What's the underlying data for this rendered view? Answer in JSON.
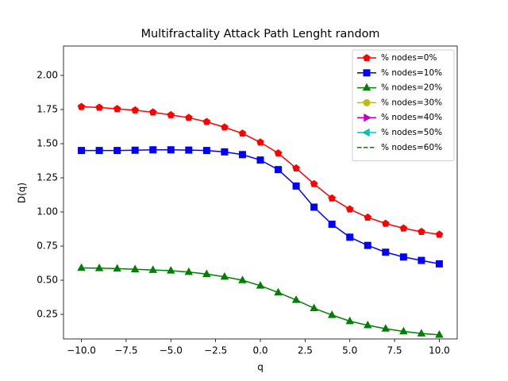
{
  "chart_data": {
    "type": "line",
    "title": "Multifractality Attack Path Lenght random",
    "x_label": "q",
    "y_label": "D(q)",
    "x": [
      -10,
      -9,
      -8,
      -7,
      -6,
      -5,
      -4,
      -3,
      -2,
      -1,
      0,
      1,
      2,
      3,
      4,
      5,
      6,
      7,
      8,
      9,
      10
    ],
    "series": [
      {
        "name": "% nodes=0%",
        "color": "#ff0000",
        "marker": "pentagon",
        "linestyle": "solid",
        "values": [
          1.77,
          1.765,
          1.755,
          1.745,
          1.73,
          1.71,
          1.69,
          1.66,
          1.62,
          1.575,
          1.51,
          1.43,
          1.32,
          1.205,
          1.1,
          1.02,
          0.96,
          0.915,
          0.88,
          0.855,
          0.835
        ]
      },
      {
        "name": "% nodes=10%",
        "color": "#0000ff",
        "marker": "square",
        "linestyle": "solid",
        "values": [
          1.45,
          1.45,
          1.45,
          1.452,
          1.455,
          1.455,
          1.453,
          1.45,
          1.44,
          1.42,
          1.38,
          1.31,
          1.19,
          1.035,
          0.91,
          0.815,
          0.755,
          0.705,
          0.67,
          0.645,
          0.62
        ]
      },
      {
        "name": "% nodes=20%",
        "color": "#008000",
        "marker": "triangle-up",
        "linestyle": "solid",
        "values": [
          0.59,
          0.588,
          0.585,
          0.58,
          0.575,
          0.57,
          0.56,
          0.545,
          0.525,
          0.5,
          0.46,
          0.41,
          0.355,
          0.295,
          0.245,
          0.2,
          0.17,
          0.145,
          0.125,
          0.11,
          0.1
        ]
      },
      {
        "name": "% nodes=30%",
        "color": "#bfbf00",
        "marker": "circle",
        "linestyle": "solid",
        "values": [
          null,
          null,
          null,
          null,
          null,
          null,
          null,
          null,
          null,
          null,
          null,
          null,
          null,
          null,
          null,
          null,
          null,
          null,
          null,
          null,
          null
        ]
      },
      {
        "name": "% nodes=40%",
        "color": "#bf00bf",
        "marker": "triangle-right",
        "linestyle": "solid",
        "values": [
          null,
          null,
          null,
          null,
          null,
          null,
          null,
          null,
          null,
          null,
          null,
          null,
          null,
          null,
          null,
          null,
          null,
          null,
          null,
          null,
          null
        ]
      },
      {
        "name": "% nodes=50%",
        "color": "#00bfbf",
        "marker": "triangle-left",
        "linestyle": "solid",
        "values": [
          null,
          null,
          null,
          null,
          null,
          null,
          null,
          null,
          null,
          null,
          null,
          null,
          null,
          null,
          null,
          null,
          null,
          null,
          null,
          null,
          null
        ]
      },
      {
        "name": "% nodes=60%",
        "color": "#008000",
        "marker": "none",
        "linestyle": "dashed",
        "values": [
          null,
          null,
          null,
          null,
          null,
          null,
          null,
          null,
          null,
          null,
          null,
          null,
          null,
          null,
          null,
          null,
          null,
          null,
          null,
          null,
          null
        ]
      }
    ],
    "xlim": [
      -11,
      11
    ],
    "ylim": [
      0.07,
      2.215
    ],
    "xticks": [
      {
        "value": -10,
        "label": "−10.0"
      },
      {
        "value": -7.5,
        "label": "−7.5"
      },
      {
        "value": -5,
        "label": "−5.0"
      },
      {
        "value": -2.5,
        "label": "−2.5"
      },
      {
        "value": 0,
        "label": "0.0"
      },
      2.5,
      {
        "value": 5,
        "label": "5.0"
      },
      7.5,
      {
        "value": 10,
        "label": "10.0"
      }
    ],
    "yticks": [
      0.25,
      {
        "value": 0.5,
        "label": "0.50"
      },
      0.75,
      {
        "value": 1,
        "label": "1.00"
      },
      1.25,
      {
        "value": 1.5,
        "label": "1.50"
      },
      1.75,
      {
        "value": 2,
        "label": "2.00"
      }
    ],
    "grid": false,
    "legend": "upper right"
  }
}
